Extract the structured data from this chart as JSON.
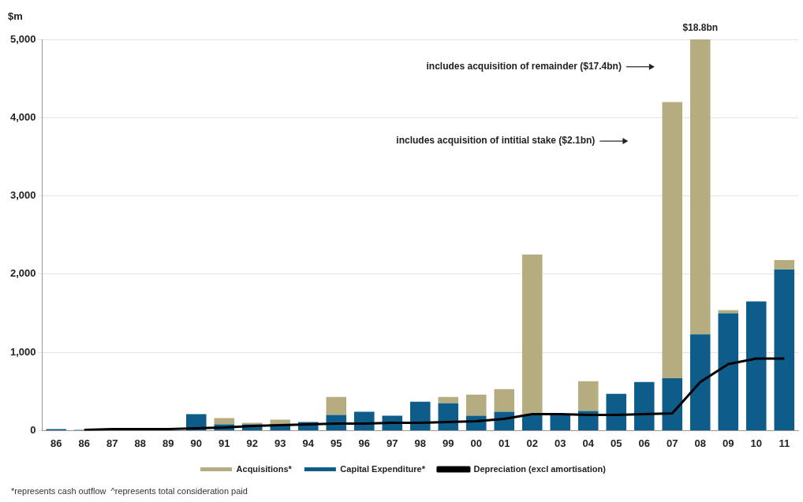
{
  "chart_data": {
    "type": "bar",
    "ylabel": "$m",
    "stacked": true,
    "grid": "y",
    "legend": "bottom",
    "categories": [
      "86",
      "86",
      "87",
      "88",
      "89",
      "90",
      "91",
      "92",
      "93",
      "94",
      "95",
      "96",
      "97",
      "98",
      "99",
      "00",
      "01",
      "02",
      "03",
      "04",
      "05",
      "06",
      "07",
      "08",
      "09",
      "10",
      "11"
    ],
    "ylim": [
      0,
      5000
    ],
    "yticks": [
      0,
      {
        "value": 1000,
        "label": "1,000"
      },
      {
        "value": 2000,
        "label": "2,000"
      },
      {
        "value": 3000,
        "label": "3,000"
      },
      {
        "value": 4000,
        "label": "4,000"
      },
      {
        "value": 5000,
        "label": "5,000"
      }
    ],
    "series": [
      {
        "name": "Capital Expenditure*",
        "color": "#0e5c8a",
        "values": [
          20,
          10,
          null,
          null,
          null,
          210,
          80,
          80,
          80,
          110,
          200,
          240,
          190,
          370,
          350,
          190,
          240,
          200,
          200,
          250,
          470,
          620,
          670,
          1230,
          1500,
          1650,
          2060
        ]
      },
      {
        "name": "Acquisitions*",
        "color": "#b5ad80",
        "values": [
          0,
          0,
          null,
          0,
          0,
          0,
          80,
          20,
          60,
          0,
          230,
          0,
          0,
          0,
          80,
          270,
          290,
          2050,
          0,
          380,
          0,
          0,
          3530,
          3770,
          40,
          0,
          120
        ]
      },
      {
        "name": "Depreciation (excl amortisation)",
        "type": "line",
        "color": "#000000",
        "values": [
          null,
          10,
          20,
          20,
          20,
          30,
          40,
          60,
          70,
          80,
          90,
          90,
          100,
          100,
          110,
          120,
          150,
          210,
          210,
          200,
          200,
          210,
          220,
          620,
          850,
          920,
          920
        ]
      }
    ],
    "annotations": [
      {
        "text": "$18.8bn",
        "x": "08",
        "y": 5000
      },
      "includes acquisition of remainder ($17.4bn)",
      "includes acquisition of intitial stake ($2.1bn)",
      "*represents cash outflow  ^represents total consideration paid"
    ]
  }
}
